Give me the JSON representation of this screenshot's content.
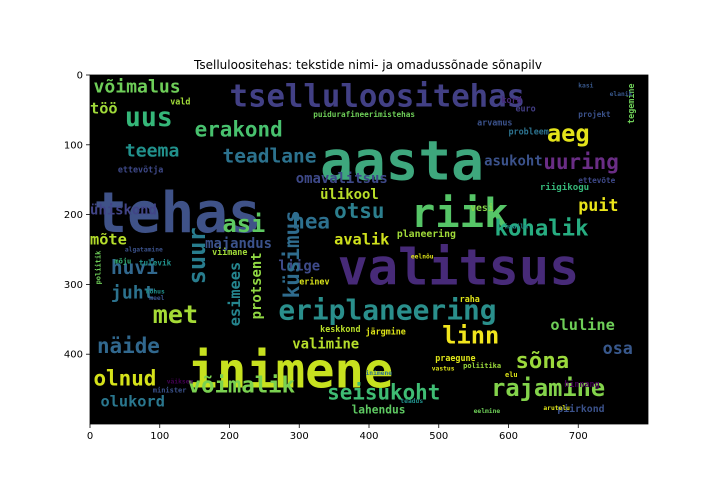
{
  "chart_data": {
    "type": "wordcloud",
    "title": "Tselluloositehas: tekstide nimi- ja omadussõnade sõnapilv",
    "xlim": [
      0,
      800
    ],
    "ylim": [
      500,
      0
    ],
    "xticks": [
      0,
      100,
      200,
      300,
      400,
      500,
      600,
      700
    ],
    "yticks": [
      0,
      100,
      200,
      300,
      400
    ],
    "background": "#000000",
    "words": [
      {
        "text": "aasta",
        "x": 330,
        "y": 150,
        "size": 78,
        "color": "#3ea77d"
      },
      {
        "text": "tehas",
        "x": 5,
        "y": 225,
        "size": 80,
        "color": "#3f5288"
      },
      {
        "text": "valitsus",
        "x": 355,
        "y": 300,
        "size": 72,
        "color": "#472a78"
      },
      {
        "text": "inimene",
        "x": 140,
        "y": 448,
        "size": 70,
        "color": "#c7e11f"
      },
      {
        "text": "tselluloositehas",
        "x": 200,
        "y": 45,
        "size": 44,
        "color": "#424085"
      },
      {
        "text": "riik",
        "x": 460,
        "y": 218,
        "size": 58,
        "color": "#56c567"
      },
      {
        "text": "eriplaneering",
        "x": 270,
        "y": 350,
        "size": 40,
        "color": "#2a8f8c"
      },
      {
        "text": "aeg",
        "x": 655,
        "y": 95,
        "size": 34,
        "color": "#e4e31a"
      },
      {
        "text": "uus",
        "x": 50,
        "y": 73,
        "size": 38,
        "color": "#35b779"
      },
      {
        "text": "erakond",
        "x": 150,
        "y": 88,
        "size": 30,
        "color": "#48c16e"
      },
      {
        "text": "võimalus",
        "x": 5,
        "y": 25,
        "size": 26,
        "color": "#6ece58"
      },
      {
        "text": "töö",
        "x": 0,
        "y": 55,
        "size": 22,
        "color": "#a0da39"
      },
      {
        "text": "teema",
        "x": 50,
        "y": 117,
        "size": 26,
        "color": "#21918c"
      },
      {
        "text": "teadlane",
        "x": 190,
        "y": 125,
        "size": 28,
        "color": "#2c728e"
      },
      {
        "text": "uuring",
        "x": 650,
        "y": 135,
        "size": 30,
        "color": "#6a2d85"
      },
      {
        "text": "asukoht",
        "x": 565,
        "y": 130,
        "size": 20,
        "color": "#3b528b"
      },
      {
        "text": "omavalitsus",
        "x": 295,
        "y": 155,
        "size": 20,
        "color": "#3e4989"
      },
      {
        "text": "ülikool",
        "x": 330,
        "y": 178,
        "size": 20,
        "color": "#b8de29"
      },
      {
        "text": "riigikogu",
        "x": 645,
        "y": 165,
        "size": 13,
        "color": "#35b779"
      },
      {
        "text": "ühiskond",
        "x": 0,
        "y": 200,
        "size": 20,
        "color": "#414487"
      },
      {
        "text": "asi",
        "x": 190,
        "y": 225,
        "size": 34,
        "color": "#5ec962"
      },
      {
        "text": "hea",
        "x": 290,
        "y": 220,
        "size": 30,
        "color": "#2d708e"
      },
      {
        "text": "otsu",
        "x": 350,
        "y": 205,
        "size": 30,
        "color": "#2c7f8e"
      },
      {
        "text": "puit",
        "x": 700,
        "y": 195,
        "size": 24,
        "color": "#eae51a"
      },
      {
        "text": "kohalik",
        "x": 580,
        "y": 230,
        "size": 32,
        "color": "#27ad81"
      },
      {
        "text": "vesi",
        "x": 545,
        "y": 195,
        "size": 14,
        "color": "#86d549"
      },
      {
        "text": "mõte",
        "x": 0,
        "y": 243,
        "size": 22,
        "color": "#b5de2b"
      },
      {
        "text": "avalik",
        "x": 350,
        "y": 243,
        "size": 22,
        "color": "#d0e11c"
      },
      {
        "text": "majandus",
        "x": 165,
        "y": 248,
        "size": 20,
        "color": "#3b528b"
      },
      {
        "text": "huvi",
        "x": 30,
        "y": 285,
        "size": 28,
        "color": "#31688e"
      },
      {
        "text": "suur",
        "x": 165,
        "y": 300,
        "size": 34,
        "color": "#287d8e",
        "rotate": -90
      },
      {
        "text": "liige",
        "x": 270,
        "y": 280,
        "size": 20,
        "color": "#3e4a89"
      },
      {
        "text": "protsent",
        "x": 245,
        "y": 350,
        "size": 20,
        "color": "#90d743",
        "rotate": -90
      },
      {
        "text": "küsimus",
        "x": 300,
        "y": 320,
        "size": 30,
        "color": "#2f6c8e",
        "rotate": -90
      },
      {
        "text": "esimees",
        "x": 215,
        "y": 360,
        "size": 22,
        "color": "#25858e",
        "rotate": -90
      },
      {
        "text": "juht",
        "x": 30,
        "y": 320,
        "size": 26,
        "color": "#2c728e"
      },
      {
        "text": "met",
        "x": 90,
        "y": 355,
        "size": 36,
        "color": "#a5db36"
      },
      {
        "text": "linn",
        "x": 505,
        "y": 385,
        "size": 34,
        "color": "#f1e51d"
      },
      {
        "text": "valimine",
        "x": 290,
        "y": 392,
        "size": 20,
        "color": "#b5de2b"
      },
      {
        "text": "oluline",
        "x": 660,
        "y": 365,
        "size": 22,
        "color": "#6ece58"
      },
      {
        "text": "sõna",
        "x": 610,
        "y": 420,
        "size": 32,
        "color": "#9bd93c"
      },
      {
        "text": "osa",
        "x": 735,
        "y": 400,
        "size": 24,
        "color": "#38588c"
      },
      {
        "text": "näide",
        "x": 10,
        "y": 398,
        "size": 30,
        "color": "#31688e"
      },
      {
        "text": "olnud",
        "x": 5,
        "y": 445,
        "size": 30,
        "color": "#d5e21a"
      },
      {
        "text": "võimalik",
        "x": 140,
        "y": 455,
        "size": 32,
        "color": "#7ad151"
      },
      {
        "text": "seisukoht",
        "x": 340,
        "y": 465,
        "size": 30,
        "color": "#3fbc73"
      },
      {
        "text": "rajamine",
        "x": 575,
        "y": 460,
        "size": 34,
        "color": "#83d34b"
      },
      {
        "text": "olukord",
        "x": 15,
        "y": 475,
        "size": 22,
        "color": "#2a778e"
      },
      {
        "text": "lahendus",
        "x": 375,
        "y": 485,
        "size": 16,
        "color": "#5ec962"
      },
      {
        "text": "piirkond",
        "x": 670,
        "y": 483,
        "size": 14,
        "color": "#3b528b"
      },
      {
        "text": "hinnang",
        "x": 680,
        "y": 447,
        "size": 12,
        "color": "#440154"
      },
      {
        "text": "keskkond",
        "x": 330,
        "y": 368,
        "size": 12,
        "color": "#b8de29"
      },
      {
        "text": "järgmine",
        "x": 395,
        "y": 372,
        "size": 12,
        "color": "#dde318"
      },
      {
        "text": "praegune",
        "x": 495,
        "y": 410,
        "size": 12,
        "color": "#dde318"
      },
      {
        "text": "planeering",
        "x": 440,
        "y": 232,
        "size": 14,
        "color": "#a0da39"
      },
      {
        "text": "puidurafineerimistehas",
        "x": 320,
        "y": 60,
        "size": 11,
        "color": "#6ece58"
      },
      {
        "text": "arvamus",
        "x": 555,
        "y": 72,
        "size": 12,
        "color": "#3b528b"
      },
      {
        "text": "euro",
        "x": 610,
        "y": 52,
        "size": 12,
        "color": "#433e85"
      },
      {
        "text": "kord",
        "x": 590,
        "y": 40,
        "size": 12,
        "color": "#482878"
      },
      {
        "text": "projekt",
        "x": 700,
        "y": 60,
        "size": 11,
        "color": "#3b528b"
      },
      {
        "text": "probleem",
        "x": 600,
        "y": 85,
        "size": 12,
        "color": "#2c728e"
      },
      {
        "text": "ettevõtja",
        "x": 40,
        "y": 140,
        "size": 12,
        "color": "#3e4989"
      },
      {
        "text": "ettevõte",
        "x": 700,
        "y": 155,
        "size": 11,
        "color": "#3e4989"
      },
      {
        "text": "vald",
        "x": 115,
        "y": 42,
        "size": 12,
        "color": "#a0da39"
      },
      {
        "text": "viimane",
        "x": 175,
        "y": 258,
        "size": 12,
        "color": "#a0da39"
      },
      {
        "text": "tulevik",
        "x": 70,
        "y": 273,
        "size": 11,
        "color": "#21918c"
      },
      {
        "text": "mõju",
        "x": 35,
        "y": 270,
        "size": 10,
        "color": "#35b779"
      },
      {
        "text": "erinev",
        "x": 300,
        "y": 300,
        "size": 12,
        "color": "#d8e219"
      },
      {
        "text": "raha",
        "x": 530,
        "y": 325,
        "size": 12,
        "color": "#dde318"
      },
      {
        "text": "minister",
        "x": 90,
        "y": 455,
        "size": 10,
        "color": "#3b528b"
      },
      {
        "text": "tegemine",
        "x": 780,
        "y": 70,
        "size": 12,
        "color": "#6ece58",
        "rotate": -90
      },
      {
        "text": "kasi",
        "x": 700,
        "y": 18,
        "size": 9,
        "color": "#38588c"
      },
      {
        "text": "elanik",
        "x": 745,
        "y": 30,
        "size": 9,
        "color": "#38588c"
      },
      {
        "text": "poliitik",
        "x": 15,
        "y": 300,
        "size": 10,
        "color": "#6ece58",
        "rotate": -90
      },
      {
        "text": "poliitika",
        "x": 535,
        "y": 420,
        "size": 10,
        "color": "#9bd93c"
      },
      {
        "text": "inimene",
        "x": 395,
        "y": 430,
        "size": 9,
        "color": "#2c728e"
      },
      {
        "text": "vastus",
        "x": 490,
        "y": 423,
        "size": 9,
        "color": "#dde318"
      },
      {
        "text": "elu",
        "x": 595,
        "y": 433,
        "size": 10,
        "color": "#dde318"
      },
      {
        "text": "teadus",
        "x": 445,
        "y": 470,
        "size": 9,
        "color": "#21918c"
      },
      {
        "text": "eelnõu",
        "x": 460,
        "y": 263,
        "size": 9,
        "color": "#dde318"
      },
      {
        "text": "maailm",
        "x": 595,
        "y": 220,
        "size": 9,
        "color": "#21918c"
      },
      {
        "text": "arutelu",
        "x": 650,
        "y": 480,
        "size": 9,
        "color": "#dde318"
      },
      {
        "text": "eelmine",
        "x": 550,
        "y": 484,
        "size": 9,
        "color": "#6ece58"
      },
      {
        "text": "algatamine",
        "x": 50,
        "y": 253,
        "size": 9,
        "color": "#3b528b"
      },
      {
        "text": "kohus",
        "x": 80,
        "y": 313,
        "size": 9,
        "color": "#21918c"
      },
      {
        "text": "meel",
        "x": 85,
        "y": 322,
        "size": 9,
        "color": "#3b528b"
      },
      {
        "text": "väiksem",
        "x": 110,
        "y": 442,
        "size": 9,
        "color": "#440154"
      }
    ]
  }
}
